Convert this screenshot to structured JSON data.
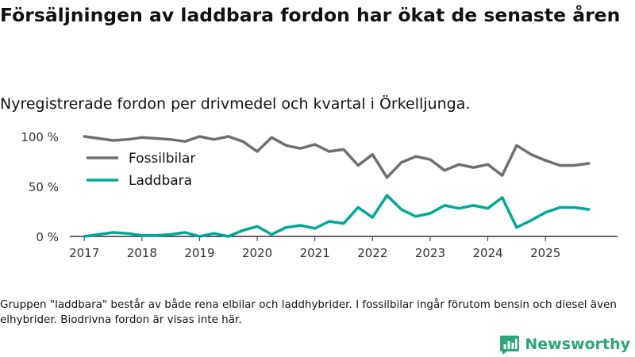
{
  "title": "Försäljningen av laddbara fordon har ökat de senaste åren",
  "subtitle": "Nyregistrerade fordon per drivmedel och kvartal i Örkelljunga.",
  "note": "Gruppen \"laddbara\" består av både rena elbilar och laddhybrider. I fossilbilar ingår förutom bensin och diesel även elhybrider. Biodrivna fordon är visas inte här.",
  "brand": {
    "name": "Newsworthy",
    "icon": "newsworthy-logo-icon",
    "color": "#2aa57c"
  },
  "chart_data": {
    "type": "line",
    "title": "Nyregistrerade fordon per drivmedel och kvartal i Örkelljunga.",
    "xlabel": "",
    "ylabel": "",
    "xlim": [
      2016.75,
      2026.25
    ],
    "ylim": [
      0,
      100
    ],
    "yticks": [
      0,
      50,
      100
    ],
    "ytick_labels": [
      "0 %",
      "50 %",
      "100 %"
    ],
    "xticks": [
      2017,
      2018,
      2019,
      2020,
      2021,
      2022,
      2023,
      2024,
      2025
    ],
    "xtick_labels": [
      "2017",
      "2018",
      "2019",
      "2020",
      "2021",
      "2022",
      "2023",
      "2024",
      "2025"
    ],
    "legend_position": "top-left",
    "grid": false,
    "x": [
      2017.0,
      2017.25,
      2017.5,
      2017.75,
      2018.0,
      2018.25,
      2018.5,
      2018.75,
      2019.0,
      2019.25,
      2019.5,
      2019.75,
      2020.0,
      2020.25,
      2020.5,
      2020.75,
      2021.0,
      2021.25,
      2021.5,
      2021.75,
      2022.0,
      2022.25,
      2022.5,
      2022.75,
      2023.0,
      2023.25,
      2023.5,
      2023.75,
      2024.0,
      2024.25,
      2024.5,
      2024.75,
      2025.0,
      2025.25,
      2025.5,
      2025.75
    ],
    "series": [
      {
        "name": "Fossilbilar",
        "color": "#6e6e73",
        "values": [
          100,
          98,
          96,
          97,
          99,
          98,
          97,
          95,
          100,
          97,
          100,
          95,
          85,
          99,
          91,
          88,
          92,
          85,
          87,
          71,
          82,
          59,
          74,
          80,
          77,
          66,
          72,
          69,
          72,
          61,
          91,
          82,
          76,
          71,
          71,
          73
        ]
      },
      {
        "name": "Laddbara",
        "color": "#00a896",
        "values": [
          0,
          2,
          4,
          3,
          1,
          1,
          2,
          4,
          0,
          3,
          0,
          6,
          10,
          2,
          9,
          11,
          8,
          15,
          13,
          29,
          19,
          41,
          27,
          20,
          23,
          31,
          28,
          31,
          28,
          39,
          9,
          16,
          24,
          29,
          29,
          27
        ]
      }
    ]
  }
}
